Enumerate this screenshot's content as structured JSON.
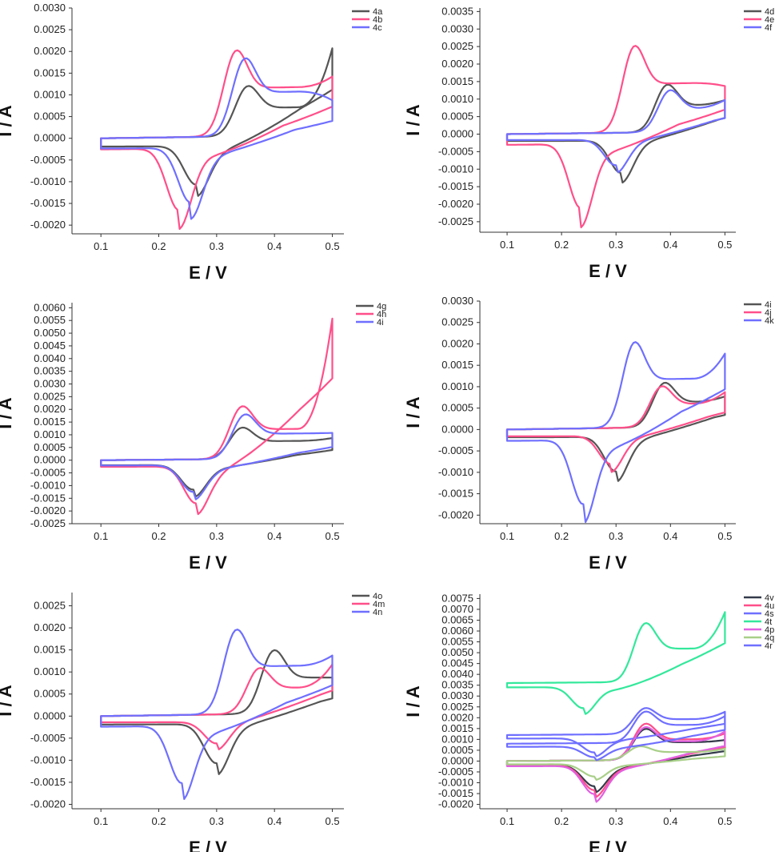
{
  "chart_data": [
    {
      "type": "line",
      "panel": "top-left",
      "xlabel": "E / V",
      "ylabel": "I / A",
      "xlim": [
        0.05,
        0.52
      ],
      "ylim": [
        -0.0022,
        0.003
      ],
      "xticks": [
        "0.1",
        "0.2",
        "0.3",
        "0.4",
        "0.5"
      ],
      "yticks": [
        "0.0030",
        "0.0025",
        "0.0020",
        "0.0015",
        "0.0010",
        "0.0005",
        "0.0000",
        "-0.0005",
        "-0.0010",
        "-0.0015",
        "-0.0020"
      ],
      "series": [
        {
          "name": "4a",
          "color": "#555555",
          "epa": 0.35,
          "ipa": 0.00145,
          "epc": 0.265,
          "ipc": -0.0011,
          "end": 0.002
        },
        {
          "name": "4b",
          "color": "#ff4f8a",
          "epa": 0.33,
          "ipa": 0.00248,
          "epc": 0.235,
          "ipc": -0.00175,
          "end": 0.00135
        },
        {
          "name": "4c",
          "color": "#6f6fff",
          "epa": 0.345,
          "ipa": 0.00225,
          "epc": 0.255,
          "ipc": -0.00155,
          "end": 0.0008
        }
      ]
    },
    {
      "type": "line",
      "panel": "top-right",
      "xlabel": "E / V",
      "ylabel": "I / A",
      "xlim": [
        0.05,
        0.52
      ],
      "ylim": [
        -0.0028,
        0.0036
      ],
      "xticks": [
        "0.1",
        "0.2",
        "0.3",
        "0.4",
        "0.5"
      ],
      "yticks": [
        "0.0035",
        "0.0030",
        "0.0025",
        "0.0020",
        "0.0015",
        "0.0010",
        "0.0005",
        "0.0000",
        "-0.0005",
        "-0.0010",
        "-0.0015",
        "-0.0020",
        "-0.0025"
      ],
      "series": [
        {
          "name": "4d",
          "color": "#555555",
          "epa": 0.39,
          "ipa": 0.0017,
          "epc": 0.31,
          "ipc": -0.00115,
          "end": 0.0009
        },
        {
          "name": "4e",
          "color": "#ff4f8a",
          "epa": 0.33,
          "ipa": 0.0031,
          "epc": 0.235,
          "ipc": -0.00225,
          "end": 0.0013
        },
        {
          "name": "4f",
          "color": "#6f6fff",
          "epa": 0.395,
          "ipa": 0.0015,
          "epc": 0.3,
          "ipc": -0.0009,
          "end": 0.0009
        }
      ]
    },
    {
      "type": "line",
      "panel": "middle-left",
      "xlabel": "E / V",
      "ylabel": "I / A",
      "xlim": [
        0.05,
        0.52
      ],
      "ylim": [
        -0.0025,
        0.0062
      ],
      "xticks": [
        "0.1",
        "0.2",
        "0.3",
        "0.4",
        "0.5"
      ],
      "yticks": [
        "0.0060",
        "0.0055",
        "0.0050",
        "0.0045",
        "0.0040",
        "0.0035",
        "0.0030",
        "0.0025",
        "0.0020",
        "0.0015",
        "0.0010",
        "0.0005",
        "0.0000",
        "-0.0005",
        "-0.0010",
        "-0.0015",
        "-0.0020",
        "-0.0025"
      ],
      "series": [
        {
          "name": "4g",
          "color": "#555555",
          "epa": 0.34,
          "ipa": 0.00155,
          "epc": 0.26,
          "ipc": -0.0012,
          "end": 0.0008
        },
        {
          "name": "4h",
          "color": "#ff4f8a",
          "epa": 0.34,
          "ipa": 0.0026,
          "epc": 0.265,
          "ipc": -0.0018,
          "end": 0.0055
        },
        {
          "name": "4i",
          "color": "#6f6fff",
          "epa": 0.345,
          "ipa": 0.0022,
          "epc": 0.26,
          "ipc": -0.0013,
          "end": 0.001
        }
      ]
    },
    {
      "type": "line",
      "panel": "middle-right",
      "xlabel": "E / V",
      "ylabel": "I / A",
      "xlim": [
        0.05,
        0.52
      ],
      "ylim": [
        -0.0022,
        0.003
      ],
      "xticks": [
        "0.1",
        "0.2",
        "0.3",
        "0.4",
        "0.5"
      ],
      "yticks": [
        "0.0030",
        "0.0025",
        "0.0020",
        "0.0015",
        "0.0010",
        "0.0005",
        "0.0000",
        "-0.0005",
        "-0.0010",
        "-0.0015",
        "-0.0020"
      ],
      "series": [
        {
          "name": "4i",
          "color": "#555555",
          "epa": 0.385,
          "ipa": 0.0013,
          "epc": 0.3,
          "ipc": -0.001,
          "end": 0.0007
        },
        {
          "name": "4j",
          "color": "#ff4f8a",
          "epa": 0.38,
          "ipa": 0.0012,
          "epc": 0.29,
          "ipc": -0.0008,
          "end": 0.0008
        },
        {
          "name": "4k",
          "color": "#6f6fff",
          "epa": 0.33,
          "ipa": 0.0025,
          "epc": 0.24,
          "ipc": -0.00185,
          "end": 0.0017
        }
      ]
    },
    {
      "type": "line",
      "panel": "bottom-left",
      "xlabel": "E / V",
      "ylabel": "I / A",
      "xlim": [
        0.05,
        0.52
      ],
      "ylim": [
        -0.0021,
        0.0028
      ],
      "xticks": [
        "0.1",
        "0.2",
        "0.3",
        "0.4",
        "0.5"
      ],
      "yticks": [
        "0.0025",
        "0.0020",
        "0.0015",
        "0.0010",
        "0.0005",
        "0.0000",
        "-0.0005",
        "-0.0010",
        "-0.0015",
        "-0.0020"
      ],
      "series": [
        {
          "name": "4o",
          "color": "#555555",
          "epa": 0.395,
          "ipa": 0.0018,
          "epc": 0.3,
          "ipc": -0.0011,
          "end": 0.0008
        },
        {
          "name": "4m",
          "color": "#ff4f8a",
          "epa": 0.37,
          "ipa": 0.0013,
          "epc": 0.3,
          "ipc": -0.0006,
          "end": 0.0011
        },
        {
          "name": "4n",
          "color": "#6f6fff",
          "epa": 0.33,
          "ipa": 0.0024,
          "epc": 0.24,
          "ipc": -0.0016,
          "end": 0.0013
        }
      ]
    },
    {
      "type": "line",
      "panel": "bottom-right",
      "xlabel": "E / V",
      "ylabel": "I / A",
      "xlim": [
        0.05,
        0.52
      ],
      "ylim": [
        -0.0022,
        0.0077
      ],
      "xticks": [
        "0.1",
        "0.2",
        "0.3",
        "0.4",
        "0.5"
      ],
      "yticks": [
        "0.0075",
        "0.0070",
        "0.0065",
        "0.0060",
        "0.0055",
        "0.0050",
        "0.0045",
        "0.0040",
        "0.0035",
        "0.0030",
        "0.0025",
        "0.0020",
        "0.0015",
        "0.0010",
        "0.0005",
        "0.0000",
        "-0.0005",
        "-0.0010",
        "-0.0015",
        "-0.0020"
      ],
      "series": [
        {
          "name": "4v",
          "color": "#333a4a",
          "epa": 0.35,
          "ipa": 0.0018,
          "epc": 0.26,
          "ipc": -0.0012,
          "end": 0.0009
        },
        {
          "name": "4u",
          "color": "#ff4f8a",
          "epa": 0.35,
          "ipa": 0.0021,
          "epc": 0.26,
          "ipc": -0.0014,
          "end": 0.0012
        },
        {
          "name": "4s",
          "color": "#6f6fff",
          "epa": 0.35,
          "ipa": 0.0027,
          "epc": 0.26,
          "ipc": 0.0004,
          "base": 0.0012,
          "end": 0.0022
        },
        {
          "name": "4t",
          "color": "#33e89b",
          "epa": 0.35,
          "ipa": 0.007,
          "epc": 0.24,
          "ipc": 0.0024,
          "base": 0.0036,
          "end": 0.0068
        },
        {
          "name": "4p",
          "color": "#e060e0",
          "epa": 0.35,
          "ipa": 0.0019,
          "epc": 0.26,
          "ipc": -0.0016,
          "end": 0.0013
        },
        {
          "name": "4q",
          "color": "#a8cf88",
          "epa": 0.34,
          "ipa": 0.0008,
          "epc": 0.26,
          "ipc": -0.0007,
          "end": 0.0005
        },
        {
          "name": "4r",
          "color": "#6f6fff",
          "epa": 0.35,
          "ipa": 0.0026,
          "epc": 0.26,
          "ipc": 0.0002,
          "base": 0.0008,
          "end": 0.002
        }
      ]
    }
  ]
}
